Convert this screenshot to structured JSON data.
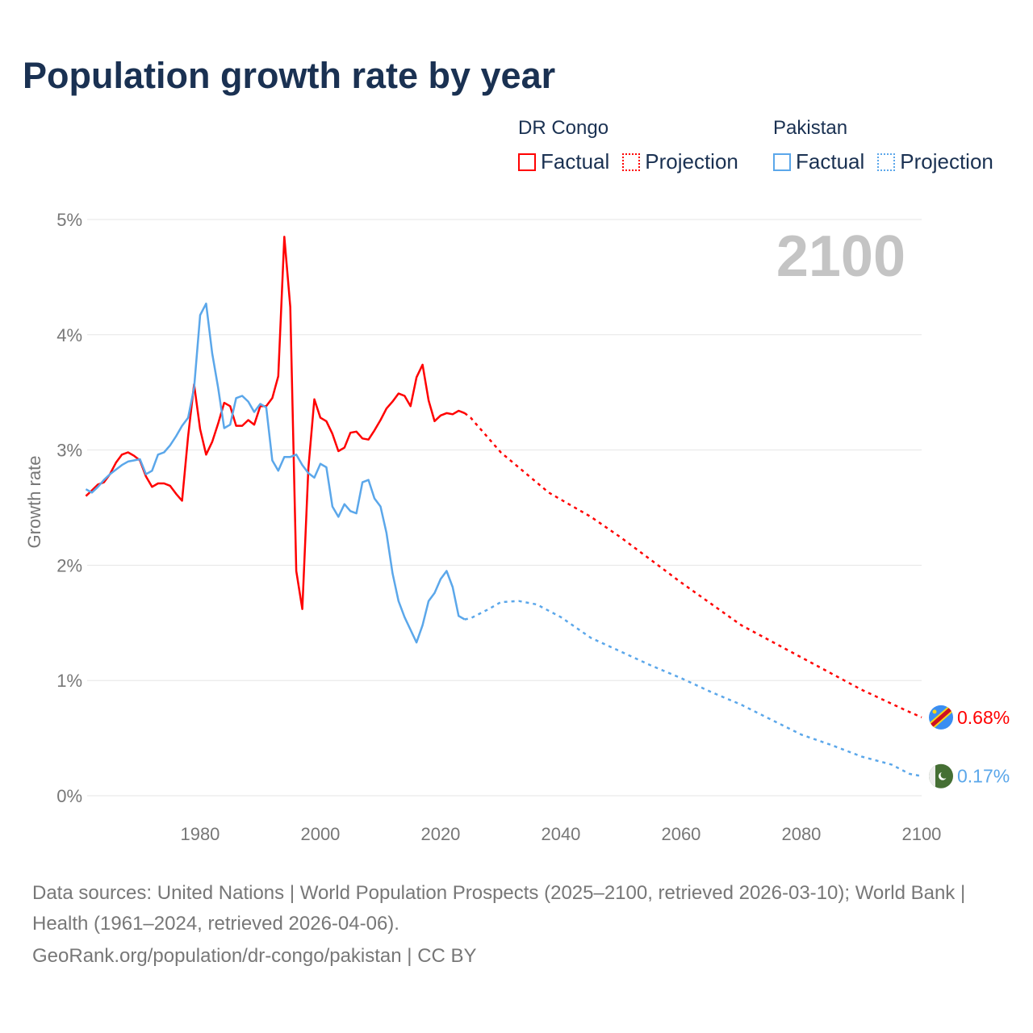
{
  "title": "Population growth rate by year",
  "legend": {
    "groups": [
      {
        "name": "DR Congo",
        "factual": "Factual",
        "projection": "Projection",
        "color": "#ff0000"
      },
      {
        "name": "Pakistan",
        "factual": "Factual",
        "projection": "Projection",
        "color": "#5ba7ea"
      }
    ]
  },
  "year_label": "2100",
  "footer": {
    "sources": "Data sources: United Nations | World Population Prospects (2025–2100, retrieved 2026-03-10); World Bank | Health (1961–2024, retrieved 2026-04-06).",
    "credit": "GeoRank.org/population/dr-congo/pakistan | CC BY"
  },
  "chart_data": {
    "type": "line",
    "title": "Population growth rate by year",
    "xlabel": "",
    "ylabel": "Growth rate",
    "xlim": [
      1961,
      2100
    ],
    "ylim": [
      0,
      5
    ],
    "x_ticks": [
      1980,
      2000,
      2020,
      2040,
      2060,
      2080,
      2100
    ],
    "y_ticks": [
      0,
      1,
      2,
      3,
      4,
      5
    ],
    "y_tick_labels": [
      "0%",
      "1%",
      "2%",
      "3%",
      "4%",
      "5%"
    ],
    "grid": true,
    "legend_position": "top-right",
    "series": [
      {
        "name": "DR Congo",
        "color": "#ff0000",
        "end_label": "0.68%",
        "flag": "dr-congo-flag",
        "factual": {
          "x_start": 1961,
          "values": [
            2.6,
            2.65,
            2.7,
            2.72,
            2.79,
            2.89,
            2.96,
            2.98,
            2.95,
            2.91,
            2.77,
            2.68,
            2.71,
            2.71,
            2.69,
            2.62,
            2.56,
            3.12,
            3.57,
            3.18,
            2.96,
            3.07,
            3.23,
            3.41,
            3.38,
            3.21,
            3.21,
            3.26,
            3.22,
            3.38,
            3.38,
            3.45,
            3.64,
            4.85,
            4.24,
            1.95,
            1.62,
            2.84,
            3.44,
            3.28,
            3.25,
            3.14,
            2.99,
            3.02,
            3.15,
            3.16,
            3.1,
            3.09,
            3.17,
            3.26,
            3.36,
            3.42,
            3.49,
            3.47,
            3.38,
            3.63,
            3.74,
            3.43,
            3.25,
            3.3,
            3.32,
            3.31,
            3.34,
            3.32
          ]
        },
        "projection": {
          "x": [
            2024,
            2025,
            2030,
            2038,
            2045,
            2050,
            2060,
            2070,
            2080,
            2090,
            2097,
            2100
          ],
          "values": [
            3.32,
            3.28,
            2.98,
            2.63,
            2.42,
            2.24,
            1.85,
            1.48,
            1.2,
            0.92,
            0.75,
            0.68
          ]
        }
      },
      {
        "name": "Pakistan",
        "color": "#5ba7ea",
        "end_label": "0.17%",
        "flag": "pakistan-flag",
        "factual": {
          "x_start": 1961,
          "values": [
            2.66,
            2.63,
            2.68,
            2.74,
            2.79,
            2.83,
            2.87,
            2.9,
            2.91,
            2.92,
            2.79,
            2.82,
            2.96,
            2.98,
            3.04,
            3.12,
            3.21,
            3.28,
            3.54,
            4.17,
            4.27,
            3.84,
            3.54,
            3.19,
            3.22,
            3.45,
            3.47,
            3.42,
            3.33,
            3.4,
            3.37,
            2.91,
            2.82,
            2.94,
            2.94,
            2.96,
            2.87,
            2.8,
            2.76,
            2.88,
            2.85,
            2.51,
            2.42,
            2.53,
            2.47,
            2.45,
            2.72,
            2.74,
            2.58,
            2.51,
            2.28,
            1.93,
            1.69,
            1.55,
            1.44,
            1.33,
            1.48,
            1.69,
            1.76,
            1.88,
            1.95,
            1.81,
            1.56,
            1.53
          ]
        },
        "projection": {
          "x": [
            2024,
            2025,
            2028,
            2030,
            2033,
            2036,
            2040,
            2045,
            2050,
            2055,
            2060,
            2065,
            2070,
            2075,
            2080,
            2085,
            2090,
            2095,
            2098,
            2100
          ],
          "values": [
            1.53,
            1.54,
            1.62,
            1.68,
            1.69,
            1.66,
            1.55,
            1.37,
            1.25,
            1.13,
            1.02,
            0.9,
            0.79,
            0.66,
            0.53,
            0.44,
            0.34,
            0.27,
            0.19,
            0.17
          ]
        }
      }
    ]
  }
}
